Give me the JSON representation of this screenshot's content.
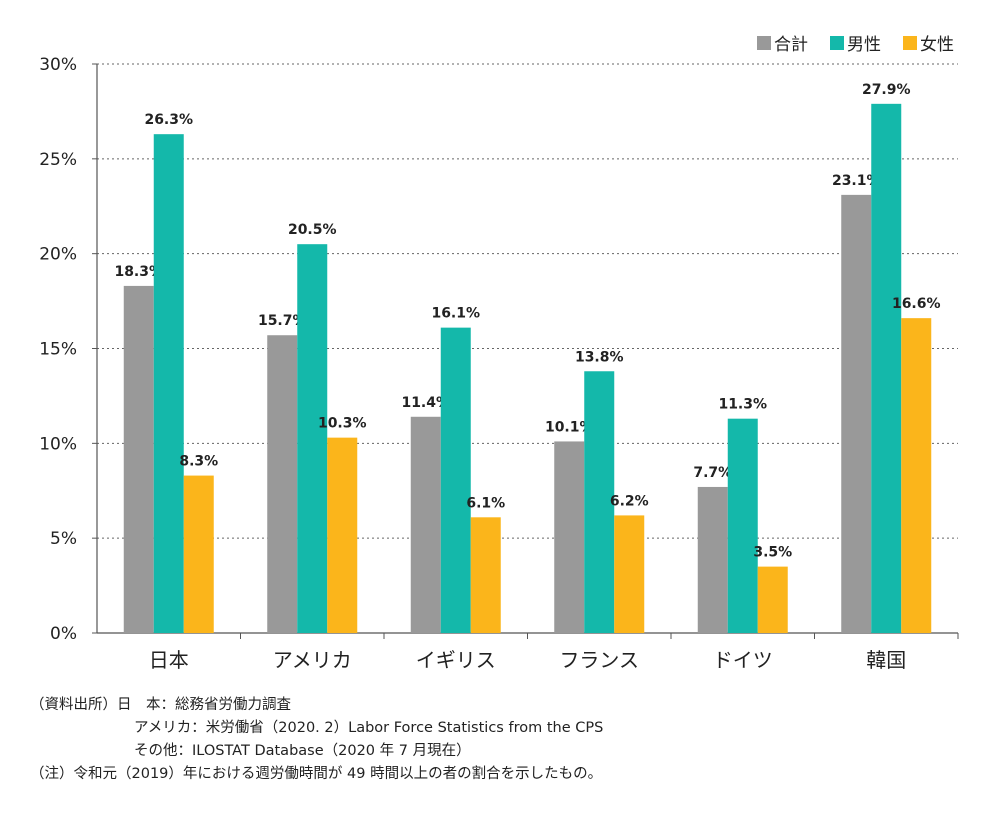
{
  "colors": {
    "total": "#999999",
    "male": "#14b8aa",
    "female": "#fbb51b",
    "grid": "#666666",
    "axis": "#555555"
  },
  "legend": [
    {
      "key": "total",
      "label": "合計"
    },
    {
      "key": "male",
      "label": "男性"
    },
    {
      "key": "female",
      "label": "女性"
    }
  ],
  "chart_data": {
    "type": "bar",
    "title": "",
    "xlabel": "",
    "ylabel": "",
    "ylim": [
      0,
      30
    ],
    "yticks": [
      0,
      5,
      10,
      15,
      20,
      25,
      30
    ],
    "ytick_labels": [
      "0%",
      "5%",
      "10%",
      "15%",
      "20%",
      "25%",
      "30%"
    ],
    "grid": true,
    "legend_position": "top-right",
    "categories": [
      "日本",
      "アメリカ",
      "イギリス",
      "フランス",
      "ドイツ",
      "韓国"
    ],
    "series": [
      {
        "name": "合計",
        "key": "total",
        "values": [
          18.3,
          15.7,
          11.4,
          10.1,
          7.7,
          23.1
        ],
        "labels": [
          "18.3%",
          "15.7%",
          "11.4%",
          "10.1%",
          "7.7%",
          "23.1%"
        ]
      },
      {
        "name": "男性",
        "key": "male",
        "values": [
          26.3,
          20.5,
          16.1,
          13.8,
          11.3,
          27.9
        ],
        "labels": [
          "26.3%",
          "20.5%",
          "16.1%",
          "13.8%",
          "11.3%",
          "27.9%"
        ]
      },
      {
        "name": "女性",
        "key": "female",
        "values": [
          8.3,
          10.3,
          6.1,
          6.2,
          3.5,
          16.6
        ],
        "labels": [
          "8.3%",
          "10.3%",
          "6.1%",
          "6.2%",
          "3.5%",
          "16.6%"
        ]
      }
    ]
  },
  "notes": {
    "line1": "（資料出所）日　本：総務省労働力調査",
    "line2": "アメリカ：米労働省（2020. 2）Labor Force Statistics from the CPS",
    "line3": "その他：ILOSTAT Database（2020 年 7 月現在）",
    "line4": "（注）令和元（2019）年における週労働時間が 49 時間以上の者の割合を示したもの。"
  }
}
